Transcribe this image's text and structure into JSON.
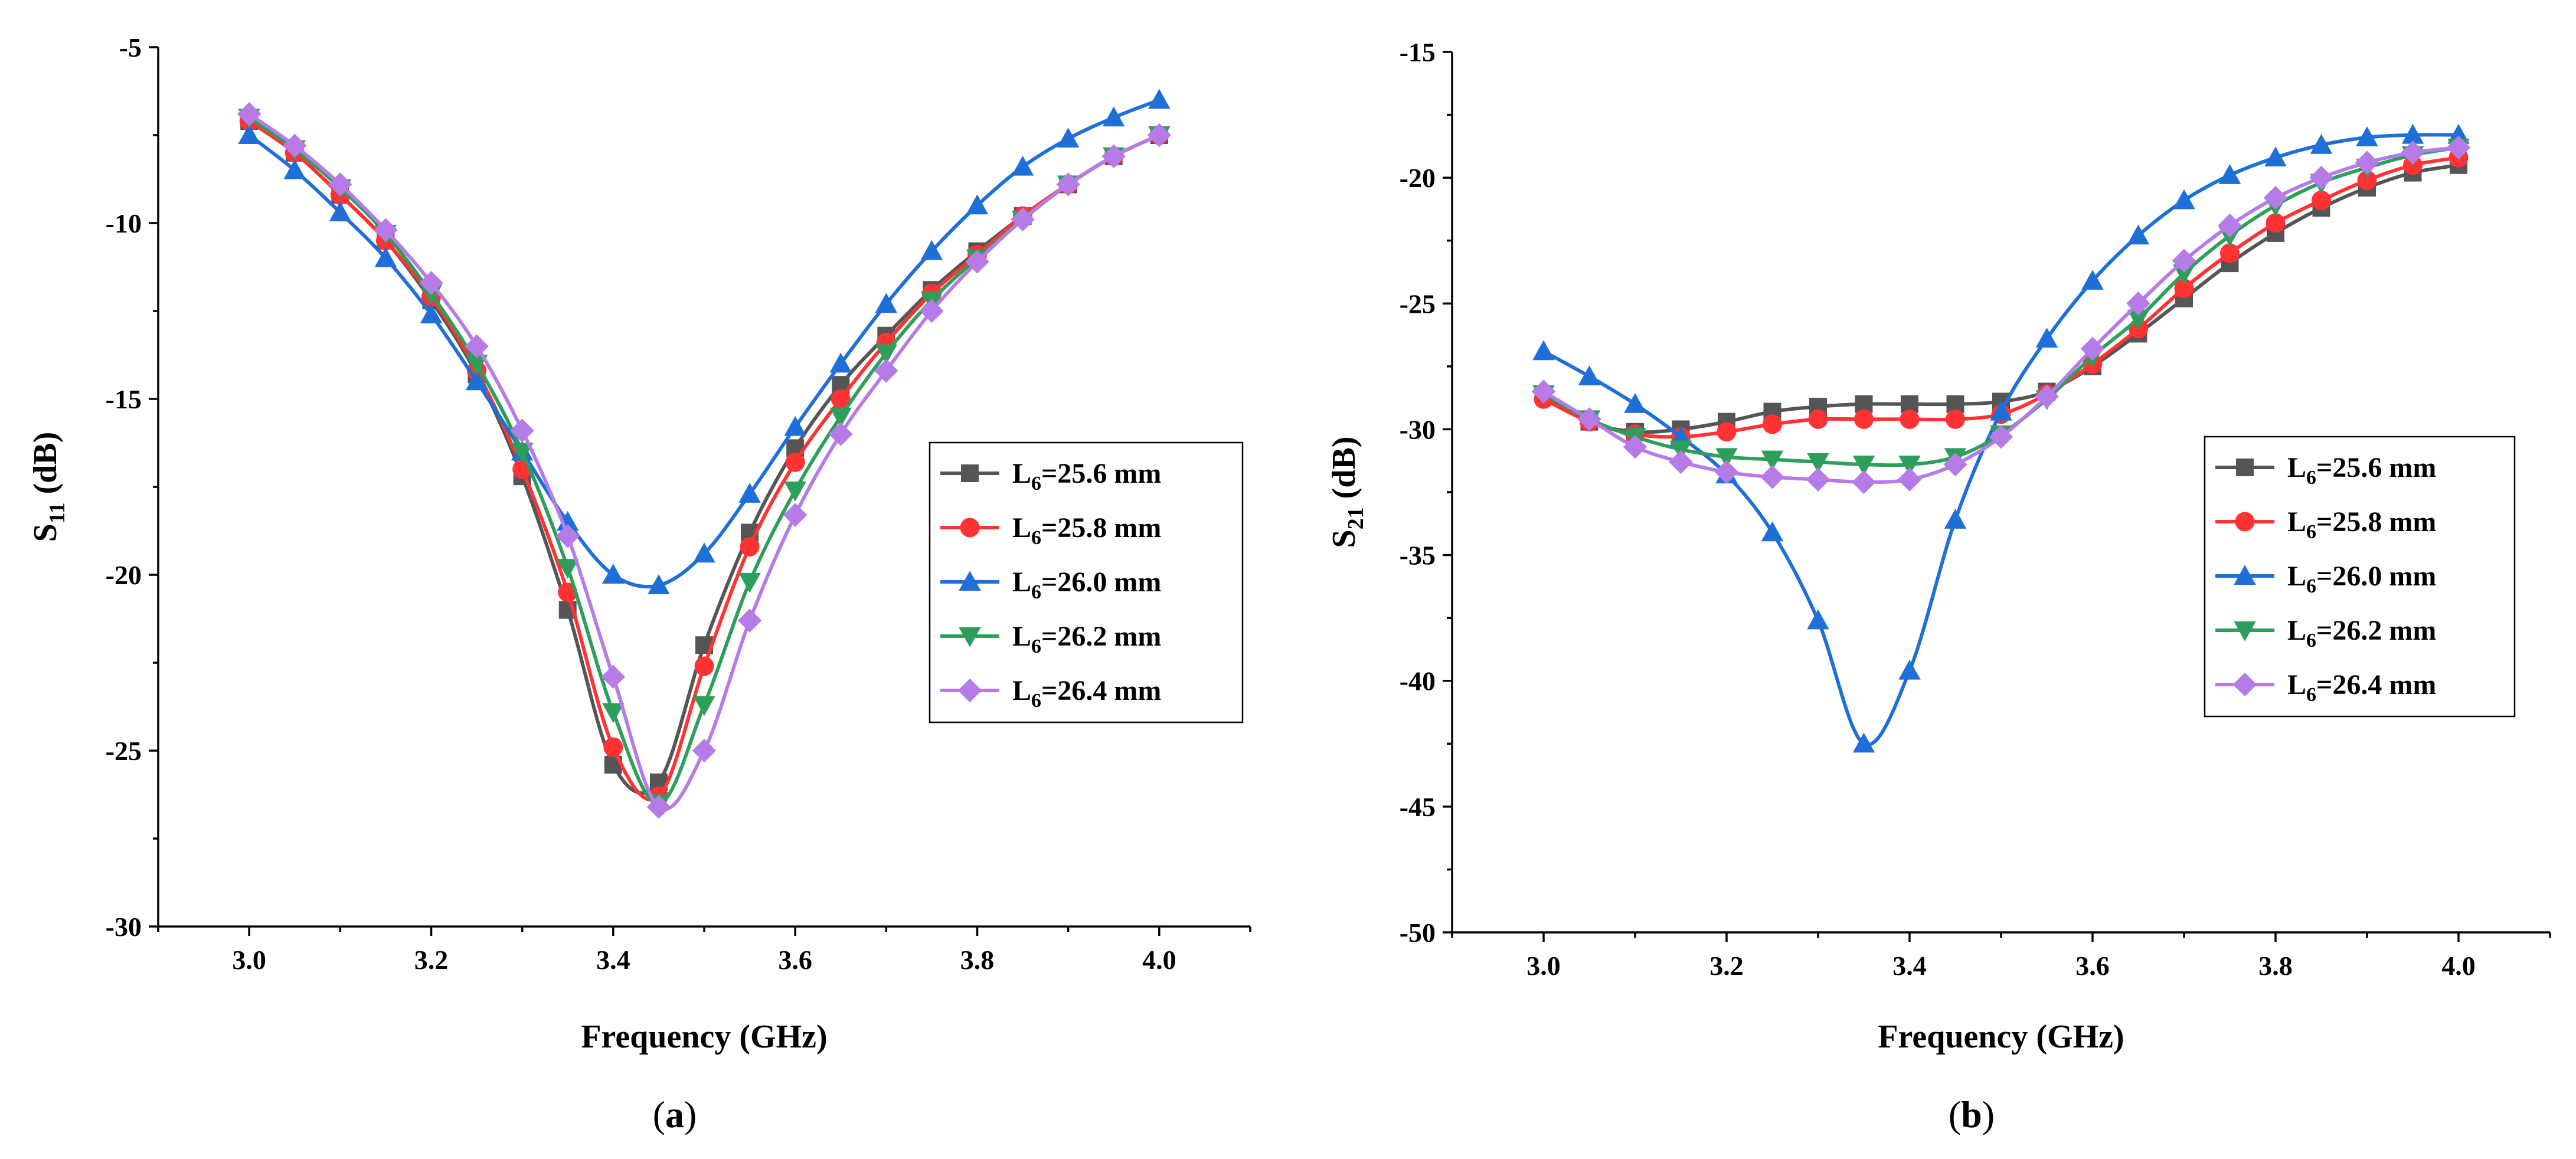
{
  "chart_data": [
    {
      "panel": "a",
      "caption": "a",
      "type": "line",
      "title": "",
      "xlabel": "Frequency (GHz)",
      "ylabel_main": "S",
      "ylabel_sub": "11",
      "ylabel_tail": " (dB)",
      "xlim": [
        2.9,
        4.1
      ],
      "ylim": [
        -30,
        -5
      ],
      "xticks": [
        3.0,
        3.2,
        3.4,
        3.6,
        3.8,
        4.0
      ],
      "xtick_labels": [
        "3.0",
        "3.2",
        "3.4",
        "3.6",
        "3.8",
        "4.0"
      ],
      "yticks": [
        -30,
        -25,
        -20,
        -15,
        -10,
        -5
      ],
      "ytick_labels": [
        "-30",
        "-25",
        "-20",
        "-15",
        "-10",
        "-5"
      ],
      "legend_position": "center-right",
      "x": [
        3.0,
        3.05,
        3.1,
        3.15,
        3.2,
        3.25,
        3.3,
        3.35,
        3.4,
        3.45,
        3.5,
        3.55,
        3.6,
        3.65,
        3.7,
        3.75,
        3.8,
        3.85,
        3.9,
        3.95,
        4.0
      ],
      "series": [
        {
          "name": "L6=25.6 mm",
          "label_main": "L",
          "label_sub": "6",
          "label_tail": "=25.6 mm",
          "color": "#555555",
          "marker": "square",
          "values": [
            -7.1,
            -8.0,
            -9.2,
            -10.5,
            -12.2,
            -14.3,
            -17.2,
            -21.0,
            -25.4,
            -25.9,
            -22.0,
            -18.8,
            -16.4,
            -14.6,
            -13.2,
            -11.9,
            -10.8,
            -9.8,
            -8.9,
            -8.1,
            -7.5
          ]
        },
        {
          "name": "L6=25.8 mm",
          "label_main": "L",
          "label_sub": "6",
          "label_tail": "=25.8 mm",
          "color": "#ff3333",
          "marker": "circle",
          "values": [
            -7.1,
            -8.0,
            -9.2,
            -10.5,
            -12.1,
            -14.2,
            -17.0,
            -20.5,
            -24.9,
            -26.3,
            -22.6,
            -19.2,
            -16.8,
            -15.0,
            -13.4,
            -12.0,
            -10.9,
            -9.8,
            -8.9,
            -8.1,
            -7.5
          ]
        },
        {
          "name": "L6=26.0 mm",
          "label_main": "L",
          "label_sub": "6",
          "label_tail": "=26.0 mm",
          "color": "#1f6fd8",
          "marker": "triangle-up",
          "values": [
            -7.5,
            -8.5,
            -9.7,
            -11.0,
            -12.6,
            -14.5,
            -16.5,
            -18.5,
            -20.0,
            -20.3,
            -19.4,
            -17.7,
            -15.8,
            -14.0,
            -12.3,
            -10.8,
            -9.5,
            -8.4,
            -7.6,
            -7.0,
            -6.5
          ]
        },
        {
          "name": "L6=26.2 mm",
          "label_main": "L",
          "label_sub": "6",
          "label_tail": "=26.2 mm",
          "color": "#2e9e5b",
          "marker": "triangle-down",
          "values": [
            -7.0,
            -7.9,
            -9.0,
            -10.3,
            -12.0,
            -14.0,
            -16.5,
            -19.8,
            -23.9,
            -26.5,
            -23.7,
            -20.2,
            -17.6,
            -15.5,
            -13.7,
            -12.2,
            -11.0,
            -9.9,
            -8.9,
            -8.1,
            -7.5
          ]
        },
        {
          "name": "L6=26.4 mm",
          "label_main": "L",
          "label_sub": "6",
          "label_tail": "=26.4 mm",
          "color": "#b77be8",
          "marker": "diamond",
          "values": [
            -6.9,
            -7.8,
            -8.9,
            -10.2,
            -11.7,
            -13.5,
            -15.9,
            -18.9,
            -22.9,
            -26.6,
            -25.0,
            -21.3,
            -18.3,
            -16.0,
            -14.2,
            -12.5,
            -11.1,
            -9.9,
            -8.9,
            -8.1,
            -7.5
          ]
        }
      ]
    },
    {
      "panel": "b",
      "caption": "b",
      "type": "line",
      "title": "",
      "xlabel": "Frequency (GHz)",
      "ylabel_main": "S",
      "ylabel_sub": "21",
      "ylabel_tail": " (dB)",
      "xlim": [
        2.9,
        4.1
      ],
      "ylim": [
        -50,
        -15
      ],
      "xticks": [
        3.0,
        3.2,
        3.4,
        3.6,
        3.8,
        4.0
      ],
      "xtick_labels": [
        "3.0",
        "3.2",
        "3.4",
        "3.6",
        "3.8",
        "4.0"
      ],
      "yticks": [
        -50,
        -45,
        -40,
        -35,
        -30,
        -25,
        -20,
        -15
      ],
      "ytick_labels": [
        "-50",
        "-45",
        "-40",
        "-35",
        "-30",
        "-25",
        "-20",
        "-15"
      ],
      "legend_position": "center-right",
      "x": [
        3.0,
        3.05,
        3.1,
        3.15,
        3.2,
        3.25,
        3.3,
        3.35,
        3.4,
        3.45,
        3.5,
        3.55,
        3.6,
        3.65,
        3.7,
        3.75,
        3.8,
        3.85,
        3.9,
        3.95,
        4.0
      ],
      "series": [
        {
          "name": "L6=25.6 mm",
          "label_main": "L",
          "label_sub": "6",
          "label_tail": "=25.6 mm",
          "color": "#555555",
          "marker": "square",
          "values": [
            -28.6,
            -29.7,
            -30.1,
            -30.0,
            -29.7,
            -29.3,
            -29.1,
            -29.0,
            -29.0,
            -29.0,
            -28.9,
            -28.5,
            -27.5,
            -26.2,
            -24.8,
            -23.4,
            -22.2,
            -21.2,
            -20.4,
            -19.8,
            -19.5
          ]
        },
        {
          "name": "L6=25.8 mm",
          "label_main": "L",
          "label_sub": "6",
          "label_tail": "=25.8 mm",
          "color": "#ff3333",
          "marker": "circle",
          "values": [
            -28.8,
            -29.7,
            -30.2,
            -30.3,
            -30.1,
            -29.8,
            -29.6,
            -29.6,
            -29.6,
            -29.6,
            -29.4,
            -28.6,
            -27.4,
            -26.0,
            -24.4,
            -23.0,
            -21.8,
            -20.9,
            -20.1,
            -19.5,
            -19.2
          ]
        },
        {
          "name": "L6=26.0 mm",
          "label_main": "L",
          "label_sub": "6",
          "label_tail": "=26.0 mm",
          "color": "#1f6fd8",
          "marker": "triangle-up",
          "values": [
            -26.9,
            -27.9,
            -29.0,
            -30.3,
            -31.8,
            -34.1,
            -37.6,
            -42.5,
            -39.6,
            -33.6,
            -29.3,
            -26.4,
            -24.1,
            -22.3,
            -20.9,
            -19.9,
            -19.2,
            -18.7,
            -18.4,
            -18.3,
            -18.3
          ]
        },
        {
          "name": "L6=26.2 mm",
          "label_main": "L",
          "label_sub": "6",
          "label_tail": "=26.2 mm",
          "color": "#2e9e5b",
          "marker": "triangle-down",
          "values": [
            -28.6,
            -29.6,
            -30.3,
            -30.8,
            -31.1,
            -31.2,
            -31.3,
            -31.4,
            -31.4,
            -31.1,
            -30.2,
            -28.8,
            -27.1,
            -25.6,
            -23.8,
            -22.3,
            -21.1,
            -20.2,
            -19.6,
            -19.1,
            -18.8
          ]
        },
        {
          "name": "L6=26.4 mm",
          "label_main": "L",
          "label_sub": "6",
          "label_tail": "=26.4 mm",
          "color": "#b77be8",
          "marker": "diamond",
          "values": [
            -28.5,
            -29.6,
            -30.7,
            -31.3,
            -31.7,
            -31.9,
            -32.0,
            -32.1,
            -32.0,
            -31.4,
            -30.3,
            -28.7,
            -26.8,
            -25.0,
            -23.3,
            -21.9,
            -20.8,
            -20.0,
            -19.4,
            -19.0,
            -18.8
          ]
        }
      ]
    }
  ]
}
